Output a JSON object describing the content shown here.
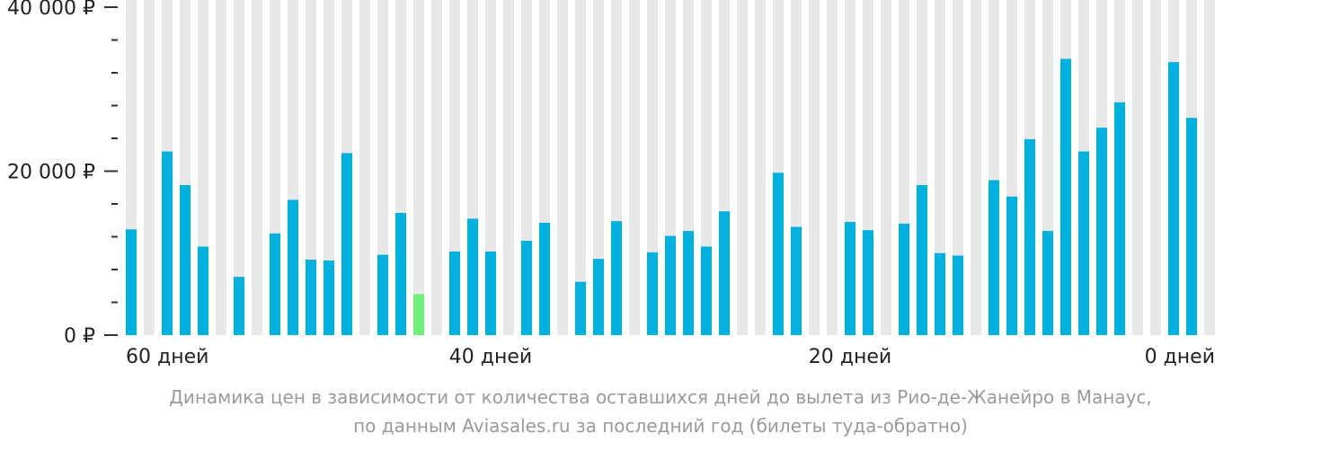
{
  "chart_data": {
    "type": "bar",
    "x_unit_label": "дней",
    "y_ticks": [
      "40 000 ₽",
      "20 000 ₽",
      "0 ₽"
    ],
    "y_tick_values": [
      40000,
      20000,
      0
    ],
    "ylim": [
      0,
      40000
    ],
    "x_ticks": [
      {
        "day": 60,
        "label": "60 дней"
      },
      {
        "day": 40,
        "label": "40 дней"
      },
      {
        "day": 20,
        "label": "20 дней"
      },
      {
        "day": 0,
        "label": "0 дней"
      }
    ],
    "days": [
      60,
      59,
      58,
      57,
      56,
      55,
      54,
      53,
      52,
      51,
      50,
      49,
      48,
      47,
      46,
      45,
      44,
      43,
      42,
      41,
      40,
      39,
      38,
      37,
      36,
      35,
      34,
      33,
      32,
      31,
      30,
      29,
      28,
      27,
      26,
      25,
      24,
      23,
      22,
      21,
      20,
      19,
      18,
      17,
      16,
      15,
      14,
      13,
      12,
      11,
      10,
      9,
      8,
      7,
      6,
      5,
      4,
      3,
      2,
      1,
      0
    ],
    "values": [
      12900,
      null,
      22400,
      18300,
      10800,
      null,
      7100,
      null,
      12400,
      16500,
      9200,
      9100,
      22200,
      null,
      9800,
      14900,
      5000,
      null,
      10200,
      14200,
      10200,
      null,
      11500,
      13700,
      null,
      6500,
      9300,
      13900,
      null,
      10100,
      12100,
      12700,
      10800,
      15100,
      null,
      null,
      19800,
      13200,
      null,
      null,
      13800,
      12800,
      null,
      13600,
      18300,
      10000,
      9700,
      null,
      18900,
      16900,
      23900,
      12700,
      33700,
      22400,
      25300,
      28400,
      null,
      null,
      33300,
      26500,
      null
    ],
    "highlight_index": 16,
    "colors": {
      "bar": "#00b0de",
      "highlight": "#71ef7b",
      "background_column": "#e8e8e8"
    },
    "grid": false
  },
  "caption": {
    "line1": "Динамика цен в зависимости от количества оставшихся дней до вылета из Рио-де-Жанейро в Манаус,",
    "line2": "по данным Aviasales.ru за последний год (билеты туда-обратно)"
  }
}
